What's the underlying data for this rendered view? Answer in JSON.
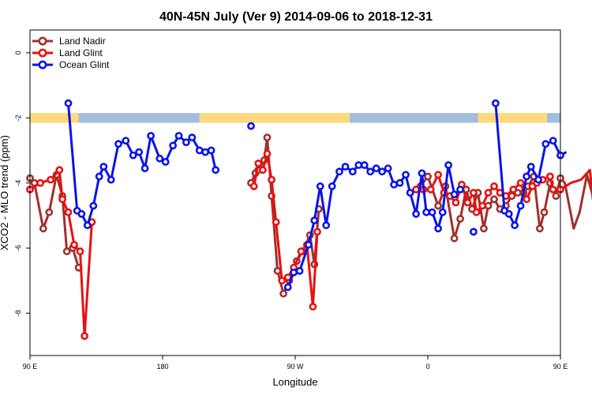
{
  "chart_data": {
    "type": "line",
    "title": "40N-45N July (Ver 9)   2014-09-06 to 2018-12-31",
    "xlabel": "Longitude",
    "ylabel": "XCO2 - MLO trend (ppm)",
    "xlim": [
      90,
      450
    ],
    "ylim": [
      -9.3,
      0.7
    ],
    "xticks": [
      {
        "value": 90,
        "label": "90 E"
      },
      {
        "value": 180,
        "label": "180"
      },
      {
        "value": 270,
        "label": "90 W"
      },
      {
        "value": 360,
        "label": "0"
      },
      {
        "value": 450,
        "label": "90 E"
      },
      {
        "value": 540,
        "label": "180"
      }
    ],
    "yticks": [
      0,
      -2,
      -4,
      -6,
      -8
    ],
    "grid": false,
    "legend_position": "top-left",
    "land_ocean_band": {
      "y_range": [
        -2.15,
        -1.85
      ],
      "ocean_color": "#a4bddd",
      "land_color": "#fcd97d",
      "land_segments": [
        [
          90,
          123
        ],
        [
          205,
          307
        ],
        [
          394,
          441
        ],
        [
          450,
          483
        ],
        [
          565,
          578
        ]
      ]
    },
    "series": [
      {
        "name": "Land Nadir",
        "color": "#a0312c",
        "points": [
          [
            90,
            -3.85
          ],
          [
            93,
            -4.0
          ],
          [
            99,
            -5.4
          ],
          [
            103,
            -4.9
          ],
          [
            108,
            -3.75
          ],
          [
            112,
            -4.4
          ],
          [
            115,
            -6.1
          ],
          [
            119,
            -6.0
          ],
          [
            123,
            -6.6
          ],
          [
            125,
            null
          ],
          [
            240,
            -4.0
          ],
          [
            243,
            -3.7
          ],
          [
            245,
            -3.6
          ],
          [
            249,
            -3.3
          ],
          [
            251,
            -2.6
          ],
          [
            254,
            -4.4
          ],
          [
            258,
            -6.7
          ],
          [
            262,
            -7.4
          ],
          [
            266,
            -7.0
          ],
          [
            271,
            -6.4
          ],
          [
            275,
            -6.1
          ],
          [
            280,
            -5.6
          ],
          [
            283,
            -6.5
          ],
          [
            286,
            -4.8
          ],
          [
            288,
            null
          ],
          [
            355,
            -4.1
          ],
          [
            360,
            -3.8
          ],
          [
            367,
            -4.7
          ],
          [
            372,
            -4.1
          ],
          [
            378,
            -5.7
          ],
          [
            382,
            -5.1
          ],
          [
            386,
            -4.2
          ],
          [
            390,
            -4.8
          ],
          [
            394,
            -4.3
          ],
          [
            398,
            -5.4
          ],
          [
            401,
            -4.7
          ],
          [
            405,
            -4.5
          ],
          [
            409,
            -4.8
          ],
          [
            413,
            -4.7
          ],
          [
            417,
            -4.4
          ],
          [
            421,
            -4.3
          ],
          [
            425,
            -4.3
          ],
          [
            428,
            -4.1
          ],
          [
            432,
            -3.8
          ],
          [
            436,
            -5.4
          ],
          [
            439,
            -4.9
          ],
          [
            443,
            -4.0
          ],
          [
            447,
            -4.4
          ],
          [
            450,
            -3.85
          ],
          [
            453,
            -4.0
          ],
          [
            459,
            -5.4
          ],
          [
            463,
            -4.9
          ],
          [
            468,
            -3.75
          ],
          [
            472,
            -4.4
          ],
          [
            475,
            -6.1
          ],
          [
            479,
            -6.0
          ],
          [
            483,
            -6.6
          ]
        ]
      },
      {
        "name": "Land Glint",
        "color": "#e81111",
        "points": [
          [
            90,
            -4.2
          ],
          [
            97,
            -4.0
          ],
          [
            104,
            -3.9
          ],
          [
            110,
            -3.6
          ],
          [
            112,
            -4.5
          ],
          [
            116,
            -4.9
          ],
          [
            120,
            -5.9
          ],
          [
            124,
            -6.1
          ],
          [
            127,
            -8.7
          ],
          [
            132,
            -5.2
          ],
          [
            134,
            null
          ],
          [
            242,
            -4.1
          ],
          [
            245,
            -3.4
          ],
          [
            248,
            -3.6
          ],
          [
            251,
            -3.1
          ],
          [
            254,
            -3.9
          ],
          [
            257,
            -5.2
          ],
          [
            261,
            -7.0
          ],
          [
            265,
            -6.9
          ],
          [
            269,
            -6.6
          ],
          [
            274,
            -6.1
          ],
          [
            278,
            -5.9
          ],
          [
            282,
            -7.8
          ],
          [
            285,
            -5.5
          ],
          [
            288,
            null
          ],
          [
            352,
            -4.2
          ],
          [
            357,
            -4.2
          ],
          [
            362,
            -4.2
          ],
          [
            367,
            -3.75
          ],
          [
            371,
            -4.3
          ],
          [
            375,
            -4.4
          ],
          [
            379,
            -4.6
          ],
          [
            383,
            -4.05
          ],
          [
            387,
            -4.6
          ],
          [
            391,
            -4.3
          ],
          [
            393,
            -4.9
          ],
          [
            397,
            -4.7
          ],
          [
            401,
            -4.3
          ],
          [
            405,
            -4.1
          ],
          [
            409,
            -4.3
          ],
          [
            413,
            -4.4
          ],
          [
            418,
            -4.2
          ],
          [
            423,
            -4.0
          ],
          [
            427,
            -4.5
          ],
          [
            431,
            -4.1
          ],
          [
            434,
            -4.0
          ],
          [
            438,
            -3.9
          ],
          [
            443,
            -3.8
          ],
          [
            445,
            -4.2
          ],
          [
            450,
            -4.2
          ],
          [
            457,
            -4.0
          ],
          [
            464,
            -3.9
          ],
          [
            470,
            -3.6
          ],
          [
            472,
            -4.5
          ],
          [
            476,
            -4.9
          ],
          [
            480,
            -5.9
          ],
          [
            484,
            -6.1
          ],
          [
            487,
            -8.7
          ],
          [
            492,
            -5.2
          ]
        ]
      },
      {
        "name": "Ocean Glint",
        "color": "#0a14e8",
        "points": [
          [
            116,
            -1.55
          ],
          [
            122,
            -4.85
          ],
          [
            125,
            -4.95
          ],
          [
            129,
            -5.3
          ],
          [
            133,
            -4.7
          ],
          [
            137,
            -3.8
          ],
          [
            140,
            -3.5
          ],
          [
            145,
            -3.9
          ],
          [
            150,
            -2.8
          ],
          [
            155,
            -2.7
          ],
          [
            160,
            -3.15
          ],
          [
            164,
            -3.05
          ],
          [
            168,
            -3.55
          ],
          [
            172,
            -2.55
          ],
          [
            178,
            -3.25
          ],
          [
            182,
            -3.35
          ],
          [
            187,
            -2.85
          ],
          [
            191,
            -2.55
          ],
          [
            196,
            -2.75
          ],
          [
            200,
            -2.6
          ],
          [
            205,
            -3.0
          ],
          [
            209,
            -3.05
          ],
          [
            213,
            -3.0
          ],
          [
            216,
            -3.6
          ],
          [
            218,
            null
          ],
          [
            240,
            -2.25
          ],
          [
            242,
            null
          ],
          [
            265,
            -7.2
          ],
          [
            269,
            -6.75
          ],
          [
            273,
            -6.7
          ],
          [
            279,
            -5.9
          ],
          [
            283,
            -5.15
          ],
          [
            287,
            -4.1
          ],
          [
            291,
            -5.3
          ],
          [
            295,
            -4.1
          ],
          [
            300,
            -3.65
          ],
          [
            304,
            -3.5
          ],
          [
            309,
            -3.65
          ],
          [
            313,
            -3.45
          ],
          [
            317,
            -3.45
          ],
          [
            321,
            -3.65
          ],
          [
            325,
            -3.55
          ],
          [
            329,
            -3.65
          ],
          [
            333,
            -3.55
          ],
          [
            337,
            -4.05
          ],
          [
            341,
            -4.0
          ],
          [
            345,
            -3.75
          ],
          [
            348,
            -4.3
          ],
          [
            352,
            -4.95
          ],
          [
            356,
            -3.7
          ],
          [
            359,
            -4.9
          ],
          [
            363,
            -4.9
          ],
          [
            367,
            -5.4
          ],
          [
            370,
            -4.9
          ],
          [
            374,
            -3.45
          ],
          [
            378,
            -4.35
          ],
          [
            382,
            -4.2
          ],
          [
            384,
            null
          ],
          [
            391,
            -5.5
          ],
          [
            393,
            null
          ],
          [
            406,
            -1.55
          ],
          [
            412,
            -4.85
          ],
          [
            415,
            -4.95
          ],
          [
            419,
            -5.3
          ],
          [
            423,
            -4.7
          ],
          [
            427,
            -3.8
          ],
          [
            430,
            -3.5
          ],
          [
            435,
            -3.9
          ],
          [
            440,
            -2.8
          ],
          [
            445,
            -2.7
          ],
          [
            450,
            -3.15
          ],
          [
            454,
            -3.05
          ]
        ]
      }
    ]
  }
}
